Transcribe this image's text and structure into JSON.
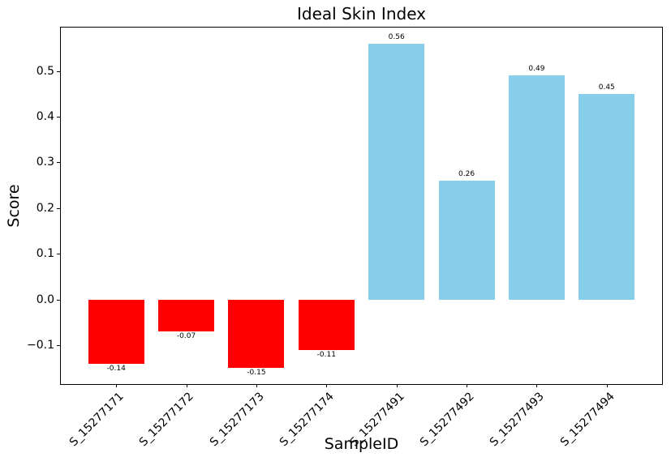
{
  "chart_data": {
    "type": "bar",
    "title": "Ideal Skin Index",
    "xlabel": "SampleID",
    "ylabel": "Score",
    "categories": [
      "S_15277171",
      "S_15277172",
      "S_15277173",
      "S_15277174",
      "S_15277491",
      "S_15277492",
      "S_15277493",
      "S_15277494"
    ],
    "values": [
      -0.14,
      -0.07,
      -0.15,
      -0.11,
      0.56,
      0.26,
      0.49,
      0.45
    ],
    "value_labels": [
      "-0.14",
      "-0.07",
      "-0.15",
      "-0.11",
      "0.56",
      "0.26",
      "0.49",
      "0.45"
    ],
    "bar_colors": [
      "#ff0000",
      "#ff0000",
      "#ff0000",
      "#ff0000",
      "#87ceeb",
      "#87ceeb",
      "#87ceeb",
      "#87ceeb"
    ],
    "negative_color": "#ff0000",
    "positive_color": "#87ceeb",
    "yticks": [
      0.5,
      0.4,
      0.3,
      0.2,
      0.1,
      0.0,
      -0.1
    ],
    "ytick_labels": [
      "0.5",
      "0.4",
      "0.3",
      "0.2",
      "0.1",
      "0.0",
      "−0.1"
    ],
    "ylim": [
      -0.185,
      0.595
    ],
    "xlim": [
      -0.79,
      7.79
    ],
    "bar_width": 0.8,
    "grid": false,
    "legend_position": "none",
    "axis_color": "#000000",
    "background_color": "#ffffff"
  }
}
